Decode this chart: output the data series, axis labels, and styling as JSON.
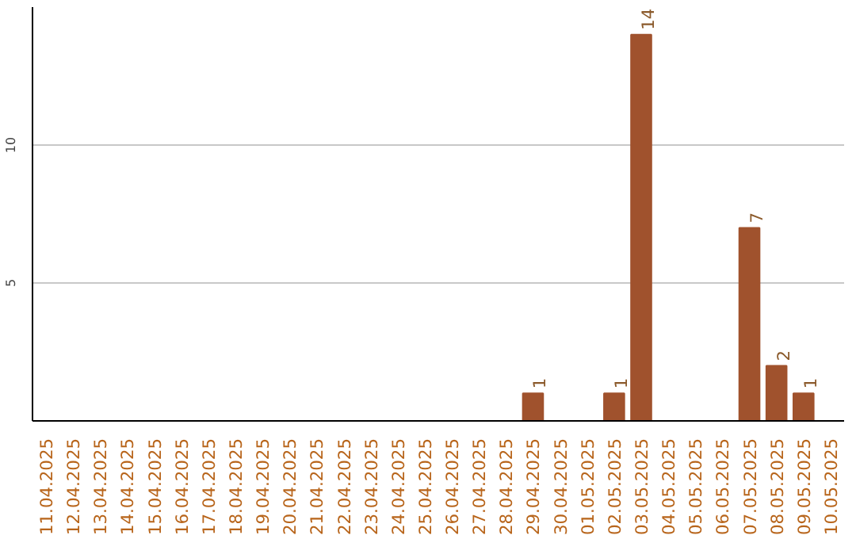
{
  "chart_data": {
    "type": "bar",
    "categories": [
      "11.04.2025",
      "12.04.2025",
      "13.04.2025",
      "14.04.2025",
      "15.04.2025",
      "16.04.2025",
      "17.04.2025",
      "18.04.2025",
      "19.04.2025",
      "20.04.2025",
      "21.04.2025",
      "22.04.2025",
      "23.04.2025",
      "24.04.2025",
      "25.04.2025",
      "26.04.2025",
      "27.04.2025",
      "28.04.2025",
      "29.04.2025",
      "30.04.2025",
      "01.05.2025",
      "02.05.2025",
      "03.05.2025",
      "04.05.2025",
      "05.05.2025",
      "06.05.2025",
      "07.05.2025",
      "08.05.2025",
      "09.05.2025",
      "10.05.2025"
    ],
    "values": [
      0,
      0,
      0,
      0,
      0,
      0,
      0,
      0,
      0,
      0,
      0,
      0,
      0,
      0,
      0,
      0,
      0,
      0,
      1,
      0,
      0,
      1,
      14,
      0,
      0,
      0,
      7,
      2,
      1,
      0
    ],
    "value_labels": [
      null,
      null,
      null,
      null,
      null,
      null,
      null,
      null,
      null,
      null,
      null,
      null,
      null,
      null,
      null,
      null,
      null,
      null,
      "1",
      null,
      null,
      "1",
      "14",
      null,
      null,
      null,
      "7",
      "2",
      "1",
      null
    ],
    "color": "#a0522d",
    "ylim": [
      0,
      15
    ],
    "yticks": [
      5,
      10
    ],
    "grid": "y"
  }
}
